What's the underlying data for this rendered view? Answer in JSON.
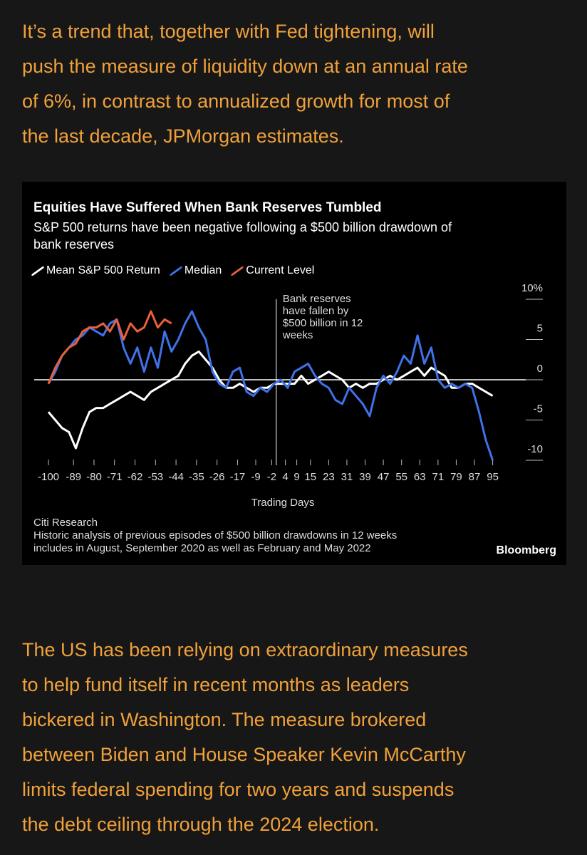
{
  "intro": {
    "lines": [
      "It’s a trend that, together with Fed tightening, will",
      "push the measure of liquidity down at an annual rate",
      "of 6%, in contrast to annualized growth for most of",
      "the last decade, JPMorgan estimates."
    ]
  },
  "chart_data": {
    "type": "line",
    "title": "Equities Have Suffered When Bank Reserves Tumbled",
    "subtitle": [
      "S&P 500 returns have been negative following a $500 billion drawdown of",
      "bank reserves"
    ],
    "x_label": "Trading Days",
    "source": "Citi Research",
    "note": [
      "Historic analysis of previous episodes of $500 billion drawdowns in 12 weeks",
      "includes in August, September 2020 as well as February and May 2022"
    ],
    "brand": "Bloomberg",
    "annotation": {
      "x": 0,
      "lines": [
        "Bank reserves",
        "have fallen by",
        "$500 billion in 12",
        "weeks"
      ]
    },
    "x": [
      -100,
      -97,
      -94,
      -91,
      -88,
      -85,
      -82,
      -79,
      -76,
      -73,
      -70,
      -67,
      -64,
      -61,
      -58,
      -55,
      -52,
      -49,
      -46,
      -43,
      -40,
      -37,
      -34,
      -31,
      -28,
      -25,
      -22,
      -19,
      -16,
      -13,
      -10,
      -7,
      -4,
      -1,
      2,
      5,
      8,
      11,
      14,
      17,
      20,
      23,
      26,
      29,
      32,
      35,
      38,
      41,
      44,
      47,
      50,
      53,
      56,
      59,
      62,
      65,
      68,
      71,
      74,
      77,
      80,
      83,
      86,
      89,
      92,
      95
    ],
    "series": [
      {
        "name": "Mean S&P 500 Return",
        "color": "#ffffff",
        "values": [
          -4,
          -5,
          -6,
          -6.5,
          -8.5,
          -6,
          -4,
          -3.5,
          -3.5,
          -3,
          -2.5,
          -2,
          -1.5,
          -2,
          -2.5,
          -1.5,
          -1,
          -0.5,
          0,
          0.5,
          2,
          3,
          3.5,
          2.5,
          1.5,
          0,
          -1,
          -1,
          -0.5,
          -1,
          -1.5,
          -1,
          -1,
          -0.5,
          -0.5,
          -0.5,
          -0.5,
          0.5,
          -0.5,
          0,
          0.5,
          1,
          0.5,
          0,
          -1,
          -0.5,
          -1,
          -0.5,
          -0.5,
          0,
          0.5,
          0,
          0.5,
          1,
          1.5,
          0.5,
          1.5,
          1,
          0.5,
          -1,
          -1,
          -0.5,
          -0.5,
          -1,
          -1.5,
          -2
        ]
      },
      {
        "name": "Median",
        "color": "#3f72e8",
        "values": [
          -0.5,
          1,
          3,
          4,
          5,
          5.5,
          6.5,
          6,
          5.5,
          7,
          7.5,
          4,
          2,
          4,
          1,
          4,
          1.5,
          6,
          3.5,
          5,
          7,
          8.5,
          6.5,
          5,
          1,
          -0.5,
          -1,
          1,
          1.5,
          -1.5,
          -2,
          -1,
          -1.5,
          -0.5,
          0,
          -1,
          1,
          1.5,
          2,
          0.5,
          -0.5,
          -1,
          -2.5,
          -3,
          -1,
          -2,
          -3,
          -4.5,
          -1,
          0.5,
          -0.5,
          1,
          3,
          2,
          5.5,
          2,
          4,
          0,
          -1,
          -0.5,
          -1,
          -0.5,
          -1,
          -4,
          -7.5,
          -10
        ]
      },
      {
        "name": "Current Level",
        "color": "#e8613a",
        "values": [
          -0.5,
          1.5,
          3,
          4,
          4.5,
          6,
          6.5,
          6.5,
          7,
          6,
          7.5,
          5,
          7,
          6,
          6.5,
          8.5,
          6.5,
          7.5,
          7,
          null,
          null,
          null,
          null,
          null,
          null,
          null,
          null,
          null,
          null,
          null,
          null,
          null,
          null,
          null,
          null,
          null,
          null,
          null,
          null,
          null,
          null,
          null,
          null,
          null,
          null,
          null,
          null,
          null,
          null,
          null,
          null,
          null,
          null,
          null,
          null,
          null,
          null,
          null,
          null,
          null,
          null,
          null,
          null,
          null,
          null,
          null
        ]
      }
    ],
    "xlim": [
      -100,
      97
    ],
    "xticks": [
      -100,
      -89,
      -80,
      -71,
      -62,
      -53,
      -44,
      -35,
      -26,
      -17,
      -9,
      -2,
      4,
      9,
      15,
      23,
      31,
      39,
      47,
      55,
      63,
      71,
      79,
      87,
      95
    ],
    "ylim": [
      -10,
      10
    ],
    "yticks": [
      {
        "value": 10,
        "label": "10%"
      },
      5,
      0,
      -5,
      -10
    ]
  },
  "outro": {
    "lines": [
      "The US has been relying on extraordinary measures",
      "to help fund itself in recent months as leaders",
      "bickered in Washington. The measure brokered",
      "between Biden and House Speaker Kevin McCarthy",
      "limits federal spending for two years and suspends",
      "the debt ceiling through the 2024 election."
    ]
  }
}
